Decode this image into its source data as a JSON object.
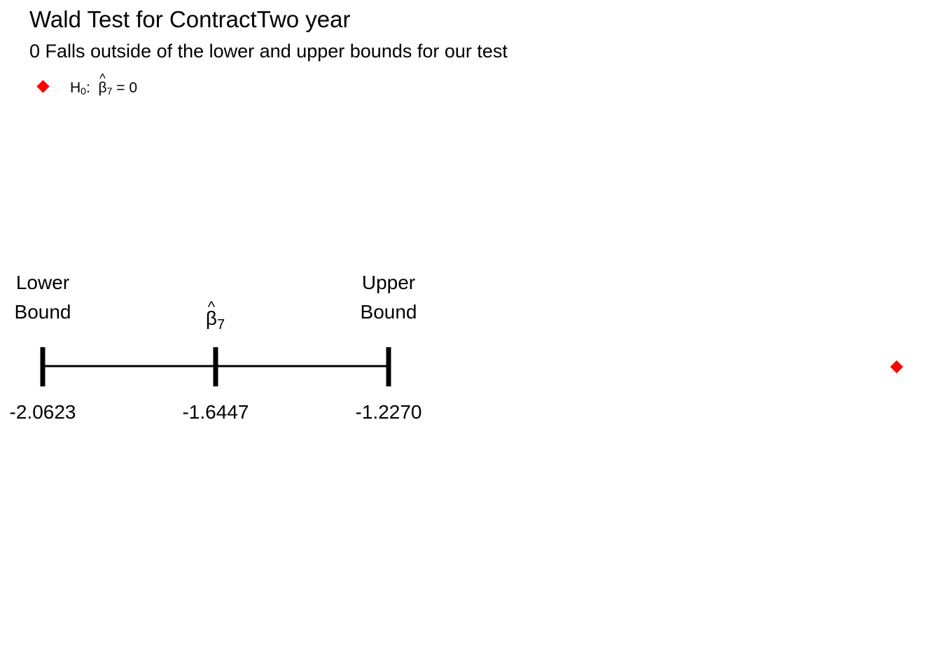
{
  "colors": {
    "marker": "#ff0000",
    "line": "#000000"
  },
  "chart_data": {
    "type": "interval",
    "title": "Wald Test for ContractTwo year",
    "subtitle": "0 Falls outside of the lower and upper bounds for our test",
    "legend": {
      "position": "top-left",
      "hypothesis_prefix": "H",
      "hypothesis_sub": "0",
      "coef_symbol": "β",
      "coef_hat": "^",
      "coef_index": "7",
      "equals_text": "= 0"
    },
    "interval": {
      "lower": -2.0623,
      "estimate": -1.6447,
      "upper": -1.227,
      "lower_label": "-2.0623",
      "estimate_label": "-1.6447",
      "upper_label": "-1.2270",
      "lower_title_line1": "Lower",
      "lower_title_line2": "Bound",
      "upper_title_line1": "Upper",
      "upper_title_line2": "Bound",
      "estimate_title_symbol": "β",
      "estimate_title_hat": "^",
      "estimate_title_index": "7"
    },
    "null_value": 0
  }
}
